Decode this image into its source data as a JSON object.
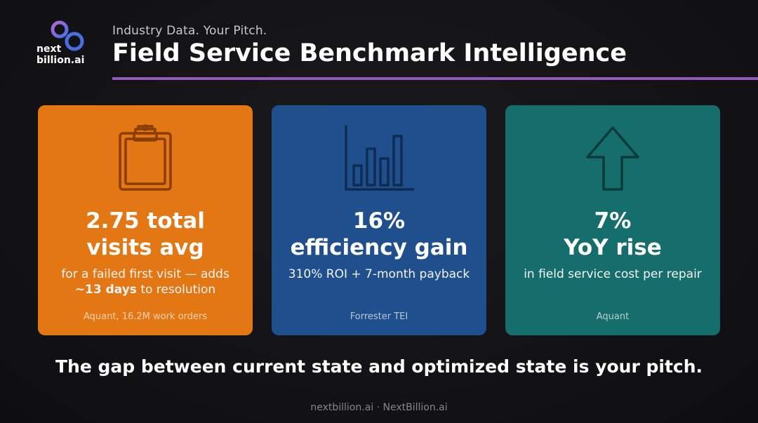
{
  "brand": {
    "logo_line1": "next",
    "logo_line2": "billion.ai"
  },
  "header": {
    "subtitle": "Industry Data. Your Pitch.",
    "title": "Field Service Benchmark Intelligence"
  },
  "colors": {
    "accent_rule": "#8f5bb5",
    "card_orange": "#e27713",
    "card_blue": "#1f4f8d",
    "card_teal": "#166e6c",
    "background": "#131316"
  },
  "cards": [
    {
      "icon": "clipboard-icon",
      "headline_line1": "2.75 total",
      "headline_line2": "visits avg",
      "desc_line1": "for a failed first visit — adds",
      "desc_bold": "~13 days",
      "desc_rest": " to resolution",
      "source": "Aquant, 16.2M work orders"
    },
    {
      "icon": "bar-chart-icon",
      "headline_line1": "16%",
      "headline_line2": "efficiency gain",
      "desc": "310% ROI + 7-month payback",
      "source": "Forrester TEI"
    },
    {
      "icon": "arrow-up-icon",
      "headline_line1": "7%",
      "headline_line2": "YoY rise",
      "desc": "in field service cost per repair",
      "source": "Aquant"
    }
  ],
  "tagline": "The gap between current state and optimized state is your pitch.",
  "footer": "nextbillion.ai · NextBillion.ai"
}
